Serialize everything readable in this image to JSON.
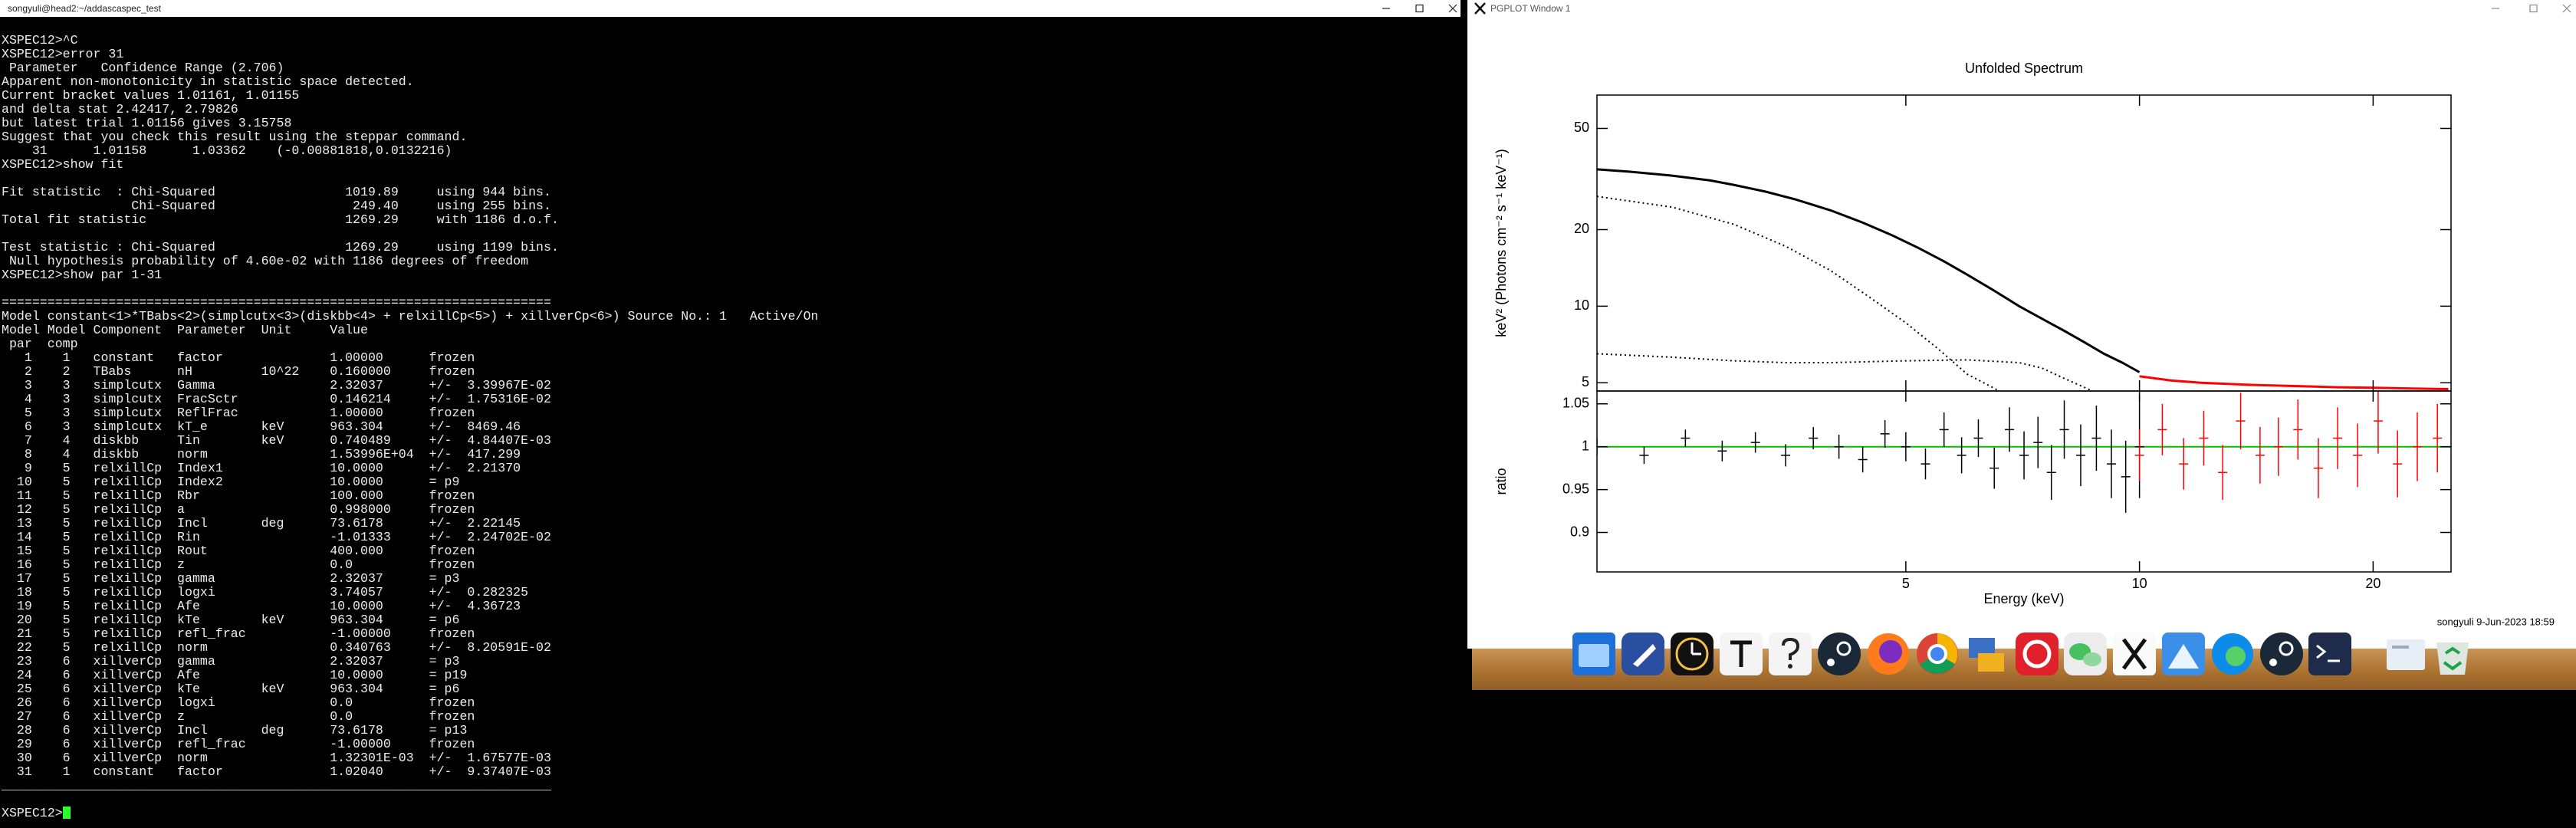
{
  "terminal": {
    "title": "songyuli@head2:~/addascaspec_test",
    "blocks": [
      [
        "XSPEC12>^C",
        "XSPEC12>error 31",
        " Parameter   Confidence Range (2.706)",
        "Apparent non-monotonicity in statistic space detected.",
        "Current bracket values 1.01161, 1.01155",
        "and delta stat 2.42417, 2.79826",
        "but latest trial 1.01156 gives 3.15758",
        "Suggest that you check this result using the steppar command.",
        "    31      1.01158      1.03362    (-0.00881818,0.0132216)",
        "XSPEC12>show fit"
      ],
      [
        "Fit statistic  : Chi-Squared                 1019.89     using 944 bins.",
        "                 Chi-Squared                  249.40     using 255 bins.",
        "Total fit statistic                          1269.29     with 1186 d.o.f."
      ],
      [
        "Test statistic : Chi-Squared                 1269.29     using 1199 bins.",
        " Null hypothesis probability of 4.60e-02 with 1186 degrees of freedom",
        "XSPEC12>show par 1-31"
      ],
      [
        "========================================================================",
        "Model constant<1>*TBabs<2>(simplcutx<3>(diskbb<4> + relxillCp<5>) + xillverCp<6>) Source No.: 1   Active/On",
        "Model Model Component  Parameter  Unit     Value",
        " par  comp",
        "   1    1   constant   factor              1.00000      frozen",
        "   2    2   TBabs      nH         10^22    0.160000     frozen",
        "   3    3   simplcutx  Gamma               2.32037      +/-  3.39967E-02",
        "   4    3   simplcutx  FracSctr            0.146214     +/-  1.75316E-02",
        "   5    3   simplcutx  ReflFrac            1.00000      frozen",
        "   6    3   simplcutx  kT_e       keV      963.304      +/-  8469.46",
        "   7    4   diskbb     Tin        keV      0.740489     +/-  4.84407E-03",
        "   8    4   diskbb     norm                1.53996E+04  +/-  417.299",
        "   9    5   relxillCp  Index1              10.0000      +/-  2.21370",
        "  10    5   relxillCp  Index2              10.0000      = p9",
        "  11    5   relxillCp  Rbr                 100.000      frozen",
        "  12    5   relxillCp  a                   0.998000     frozen",
        "  13    5   relxillCp  Incl       deg      73.6178      +/-  2.22145",
        "  14    5   relxillCp  Rin                 -1.01333     +/-  2.24702E-02",
        "  15    5   relxillCp  Rout                400.000      frozen",
        "  16    5   relxillCp  z                   0.0          frozen",
        "  17    5   relxillCp  gamma               2.32037      = p3",
        "  18    5   relxillCp  logxi               3.74057      +/-  0.282325",
        "  19    5   relxillCp  Afe                 10.0000      +/-  4.36723",
        "  20    5   relxillCp  kTe        keV      963.304      = p6",
        "  21    5   relxillCp  refl_frac           -1.00000     frozen",
        "  22    5   relxillCp  norm                0.340763     +/-  8.20591E-02",
        "  23    6   xillverCp  gamma               2.32037      = p3",
        "  24    6   xillverCp  Afe                 10.0000      = p19",
        "  25    6   xillverCp  kTe        keV      963.304      = p6",
        "  26    6   xillverCp  logxi               0.0          frozen",
        "  27    6   xillverCp  z                   0.0          frozen",
        "  28    6   xillverCp  Incl       deg      73.6178      = p13",
        "  29    6   xillverCp  refl_frac           -1.00000     frozen",
        "  30    6   xillverCp  norm                1.32301E-03  +/-  1.67577E-03",
        "  31    1   constant   factor              1.02040      +/-  9.37407E-03",
        "________________________________________________________________________"
      ],
      [
        "XSPEC12>"
      ]
    ]
  },
  "plot_window": {
    "title": "PGPLOT Window 1",
    "footer": "songyuli  9-Jun-2023 18:59"
  },
  "chart_data": [
    {
      "type": "line",
      "title": "Unfolded Spectrum",
      "ylabel": "keV² (Photons cm⁻² s⁻¹ keV⁻¹)",
      "log_x": true,
      "log_y": true,
      "xlim": [
        2,
        25.2
      ],
      "ylim": [
        4.64,
        67.6
      ],
      "xticks": [
        5,
        10,
        20
      ],
      "xtick_labels": false,
      "yticks": [
        5,
        10,
        20,
        50
      ],
      "series": [
        {
          "color": "#000000",
          "style": "solid",
          "x": [
            2.0,
            2.2,
            2.5,
            2.8,
            3.0,
            3.3,
            3.6,
            4.0,
            4.4,
            4.8,
            5.2,
            5.6,
            6.0,
            6.5,
            7.0,
            7.5,
            8.0,
            8.5,
            9.0,
            9.5,
            10.0
          ],
          "values": [
            34.5,
            33.8,
            32.6,
            31.2,
            30.0,
            28.2,
            26.3,
            23.8,
            21.3,
            19.0,
            16.9,
            15.0,
            13.3,
            11.5,
            10.0,
            8.9,
            8.0,
            7.2,
            6.5,
            6.0,
            5.5
          ]
        },
        {
          "color": "#ff0000",
          "style": "solid",
          "x": [
            10,
            11,
            12,
            13,
            14,
            16,
            18,
            20,
            22,
            25
          ],
          "values": [
            5.3,
            5.1,
            5.0,
            4.95,
            4.9,
            4.85,
            4.8,
            4.78,
            4.75,
            4.72
          ]
        },
        {
          "color": "#000000",
          "style": "dotted",
          "x": [
            2,
            2.5,
            3,
            3.5,
            4,
            4.5,
            5,
            5.5,
            6,
            6.6
          ],
          "values": [
            27,
            24.5,
            21,
            17.2,
            13.8,
            10.8,
            8.6,
            6.8,
            5.4,
            4.64
          ]
        },
        {
          "color": "#000000",
          "style": "dotted",
          "x": [
            2,
            2.5,
            3,
            3.5,
            4,
            5,
            6,
            7,
            7.5,
            8,
            8.7
          ],
          "values": [
            6.5,
            6.3,
            6.1,
            6.0,
            6.0,
            6.1,
            6.15,
            6.0,
            5.7,
            5.2,
            4.64
          ]
        }
      ]
    },
    {
      "type": "errorbar",
      "xlabel": "Energy (keV)",
      "ylabel": "ratio",
      "log_x": true,
      "log_y": false,
      "xlim": [
        2,
        25.2
      ],
      "ylim": [
        0.854,
        1.065
      ],
      "xticks": [
        5,
        10,
        20
      ],
      "xtick_labels": true,
      "yticks": [
        0.9,
        0.95,
        1,
        1.05
      ],
      "reference_line": {
        "value": 1,
        "color": "#00c000"
      },
      "series": [
        {
          "color": "#000000",
          "x": [
            2.0,
            2.3,
            2.6,
            2.9,
            3.2,
            3.5,
            3.8,
            4.1,
            4.4,
            4.7,
            5.0,
            5.3,
            5.6,
            5.9,
            6.2,
            6.5,
            6.8,
            7.1,
            7.4,
            7.7,
            8.0,
            8.4,
            8.8,
            9.2,
            9.6,
            10.0
          ],
          "values": [
            1.0,
            0.99,
            1.01,
            0.995,
            1.005,
            0.99,
            1.01,
            1.0,
            0.985,
            1.015,
            1.0,
            0.98,
            1.02,
            0.99,
            1.01,
            0.975,
            1.02,
            0.99,
            1.005,
            0.97,
            1.02,
            0.99,
            1.01,
            0.98,
            0.965,
            1.0
          ],
          "errors": [
            0.01,
            0.01,
            0.01,
            0.012,
            0.012,
            0.013,
            0.013,
            0.014,
            0.015,
            0.016,
            0.017,
            0.018,
            0.02,
            0.021,
            0.022,
            0.024,
            0.026,
            0.028,
            0.03,
            0.032,
            0.034,
            0.036,
            0.038,
            0.04,
            0.042,
            0.06
          ]
        },
        {
          "color": "#ff0000",
          "x": [
            10.0,
            10.7,
            11.4,
            12.1,
            12.8,
            13.5,
            14.3,
            15.1,
            16.0,
            17.0,
            18.0,
            19.1,
            20.3,
            21.5,
            22.8,
            24.2
          ],
          "values": [
            0.99,
            1.02,
            0.98,
            1.01,
            0.97,
            1.03,
            0.99,
            1.0,
            1.02,
            0.975,
            1.01,
            0.99,
            1.03,
            0.98,
            1.0,
            1.01
          ],
          "errors": [
            0.03,
            0.03,
            0.03,
            0.032,
            0.032,
            0.033,
            0.033,
            0.034,
            0.035,
            0.035,
            0.036,
            0.037,
            0.038,
            0.039,
            0.04,
            0.04
          ]
        }
      ]
    }
  ]
}
